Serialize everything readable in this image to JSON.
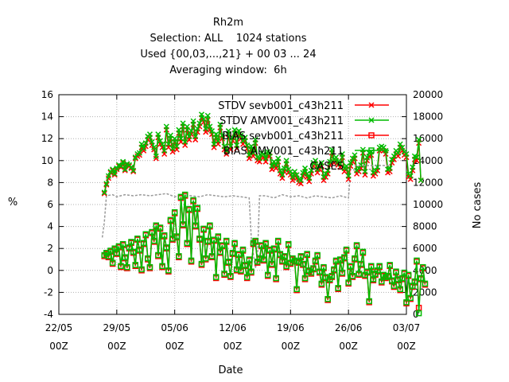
{
  "chart_data": {
    "type": "line",
    "title_lines": [
      "Rh2m",
      "Selection: ALL    1024 stations",
      "Used {00,03,...,21} + 00 03 ... 24",
      "Averaging window:  6h"
    ],
    "xlabel": "Date",
    "ylabel": "%",
    "y2label": "No cases",
    "xlim": [
      "2014-05-22T00:00",
      "2014-07-03T00:00"
    ],
    "ylim": [
      -4,
      16
    ],
    "y2lim": [
      0,
      20000
    ],
    "xticks": [
      {
        "date": "2014-05-22T00:00",
        "label": "22/05",
        "sub": "00Z"
      },
      {
        "date": "2014-05-29T00:00",
        "label": "29/05",
        "sub": "00Z"
      },
      {
        "date": "2014-06-05T00:00",
        "label": "05/06",
        "sub": "00Z"
      },
      {
        "date": "2014-06-12T00:00",
        "label": "12/06",
        "sub": "00Z"
      },
      {
        "date": "2014-06-19T00:00",
        "label": "19/06",
        "sub": "00Z"
      },
      {
        "date": "2014-06-26T00:00",
        "label": "26/06",
        "sub": "00Z"
      },
      {
        "date": "2014-07-03T00:00",
        "label": "03/07",
        "sub": "00Z"
      }
    ],
    "yticks": [
      "-4",
      "-2",
      "0",
      "2",
      "4",
      "6",
      "8",
      "10",
      "12",
      "14",
      "16"
    ],
    "y2ticks": [
      "0",
      "2000",
      "4000",
      "6000",
      "8000",
      "10000",
      "12000",
      "14000",
      "16000",
      "18000",
      "20000"
    ],
    "grid": true,
    "legend_position": "top-right",
    "x_step_hours": 6,
    "x_start": "2014-05-27T12:00",
    "series": [
      {
        "name": "STDV sevb001_c43h211",
        "color": "#ff0000",
        "marker": "x",
        "values": [
          7.0,
          7.8,
          8.4,
          8.9,
          9.1,
          8.7,
          9.2,
          9.5,
          9.4,
          9.8,
          9.1,
          9.6,
          9.5,
          9.3,
          9.0,
          10.2,
          10.4,
          10.5,
          11.2,
          10.9,
          11.3,
          11.9,
          12.1,
          11.4,
          11.0,
          10.2,
          12.1,
          11.5,
          11.2,
          10.6,
          12.8,
          11.2,
          12.0,
          10.8,
          11.7,
          11.0,
          12.5,
          11.7,
          13.1,
          11.4,
          12.8,
          11.9,
          12.4,
          13.3,
          11.9,
          12.6,
          13.1,
          13.9,
          13.5,
          12.6,
          13.7,
          12.8,
          12.4,
          11.2,
          12.1,
          11.5,
          13.0,
          12.0,
          11.0,
          10.6,
          12.4,
          11.0,
          11.8,
          12.5,
          11.1,
          12.4,
          12.0,
          11.5,
          11.8,
          11.1,
          10.2,
          11.0,
          10.4,
          11.6,
          10.0,
          9.9,
          10.4,
          10.3,
          9.9,
          10.5,
          10.4,
          9.2,
          9.6,
          9.3,
          9.9,
          8.8,
          8.4,
          9.0,
          9.7,
          8.9,
          8.7,
          8.2,
          8.7,
          8.4,
          8.0,
          7.9,
          8.6,
          9.0,
          8.5,
          8.1,
          8.8,
          9.5,
          9.7,
          8.9,
          9.2,
          9.5,
          8.2,
          8.5,
          8.8,
          9.6,
          10.7,
          9.8,
          10.0,
          9.6,
          9.4,
          10.3,
          9.0,
          9.2,
          8.3,
          9.5,
          9.9,
          10.2,
          8.8,
          9.0,
          9.3,
          10.7,
          8.7,
          10.0,
          10.4,
          10.5,
          8.6,
          8.8,
          9.1,
          10.9,
          11.0,
          10.9,
          10.6,
          8.9,
          9.0,
          9.8,
          10.1,
          10.6,
          10.4,
          11.2,
          10.9,
          10.5,
          10.3,
          8.5,
          8.3,
          9.1,
          10.1,
          10.0,
          11.6,
          8.2
        ]
      },
      {
        "name": "STDV AMV001_c43h211",
        "color": "#00bb00",
        "marker": "x",
        "values": [
          7.1,
          7.9,
          8.6,
          9.0,
          9.2,
          8.8,
          9.3,
          9.6,
          9.5,
          9.9,
          9.2,
          9.7,
          9.6,
          9.4,
          9.1,
          10.3,
          10.6,
          10.7,
          11.5,
          11.1,
          11.6,
          12.2,
          12.4,
          11.7,
          11.2,
          10.4,
          12.4,
          11.8,
          11.5,
          10.9,
          13.1,
          11.5,
          12.3,
          11.1,
          12.0,
          11.3,
          12.8,
          12.0,
          13.4,
          11.7,
          13.1,
          12.2,
          12.7,
          13.6,
          12.2,
          12.9,
          13.4,
          14.2,
          13.8,
          12.9,
          14.1,
          13.1,
          12.7,
          11.5,
          12.4,
          11.8,
          13.3,
          12.3,
          11.3,
          10.9,
          12.7,
          11.3,
          12.1,
          12.8,
          11.4,
          12.7,
          12.3,
          11.8,
          12.1,
          11.4,
          10.5,
          11.3,
          10.7,
          11.9,
          10.3,
          10.2,
          10.7,
          10.6,
          10.2,
          10.8,
          10.7,
          9.5,
          9.9,
          9.6,
          10.2,
          9.1,
          8.7,
          9.3,
          10.0,
          9.2,
          9.0,
          8.5,
          9.0,
          8.7,
          8.3,
          8.2,
          8.9,
          9.3,
          8.8,
          8.4,
          9.1,
          9.8,
          10.0,
          9.2,
          9.5,
          9.8,
          8.5,
          8.8,
          9.1,
          9.9,
          11.0,
          10.1,
          10.3,
          9.9,
          9.7,
          10.6,
          9.3,
          9.5,
          8.6,
          9.8,
          10.2,
          10.5,
          9.1,
          9.3,
          9.6,
          11.0,
          9.0,
          10.3,
          10.7,
          10.8,
          8.9,
          9.1,
          9.4,
          11.2,
          11.3,
          11.2,
          10.9,
          9.2,
          9.3,
          10.1,
          10.4,
          10.9,
          10.7,
          11.5,
          11.2,
          10.8,
          10.6,
          8.8,
          8.6,
          9.4,
          10.4,
          10.3,
          11.9,
          8.2
        ]
      },
      {
        "name": "BIAS sevb001_c43h211",
        "color": "#ff0000",
        "marker": "square",
        "values": [
          1.3,
          1.5,
          1.2,
          1.7,
          0.6,
          1.9,
          1.5,
          2.1,
          0.3,
          2.3,
          1.1,
          0.2,
          2.0,
          2.5,
          1.6,
          0.4,
          2.8,
          1.8,
          0.0,
          2.4,
          3.2,
          1.0,
          0.2,
          3.4,
          2.6,
          4.0,
          1.3,
          3.8,
          0.3,
          3.1,
          2.0,
          -0.1,
          4.5,
          2.8,
          5.2,
          3.0,
          1.2,
          6.6,
          4.1,
          6.8,
          2.4,
          5.5,
          0.8,
          6.3,
          4.0,
          5.6,
          2.8,
          0.5,
          3.7,
          1.0,
          2.6,
          4.0,
          1.2,
          2.7,
          -0.7,
          3.0,
          1.6,
          2.2,
          -0.4,
          2.6,
          0.7,
          -0.6,
          1.5,
          2.4,
          0.0,
          1.4,
          -0.1,
          1.8,
          0.4,
          -0.7,
          0.9,
          -0.2,
          2.4,
          2.6,
          0.7,
          1.0,
          2.2,
          0.9,
          2.4,
          -0.5,
          1.8,
          0.5,
          1.9,
          -0.8,
          2.6,
          1.4,
          0.8,
          1.2,
          0.3,
          2.3,
          0.6,
          1.0,
          0.8,
          -1.8,
          0.7,
          1.2,
          0.5,
          -0.8,
          1.4,
          -0.1,
          -0.3,
          0.1,
          0.8,
          1.3,
          -0.2,
          -1.3,
          0.2,
          -0.7,
          -2.7,
          -0.9,
          -0.6,
          0.0,
          0.8,
          -1.7,
          0.9,
          -0.3,
          1.1,
          1.8,
          -1.2,
          0.3,
          -0.6,
          1.0,
          2.2,
          -0.4,
          0.5,
          1.6,
          -0.5,
          -0.2,
          -2.9,
          0.3,
          -0.9,
          -0.4,
          -0.1,
          0.3,
          -1.1,
          -0.5,
          -0.7,
          -0.6,
          0.4,
          -1.0,
          -1.5,
          -0.2,
          -0.9,
          -1.8,
          -0.8,
          -0.3,
          -3.0,
          -0.5,
          -2.6,
          -1.5,
          -1.1,
          0.8,
          -3.4,
          -0.8,
          0.2,
          -1.3
        ]
      },
      {
        "name": "BIAS AMV001_c43h211",
        "color": "#00bb00",
        "marker": "square",
        "values": [
          1.4,
          1.6,
          1.3,
          1.8,
          0.7,
          2.0,
          1.6,
          2.2,
          0.4,
          2.4,
          1.2,
          0.3,
          2.1,
          2.6,
          1.7,
          0.5,
          2.9,
          1.9,
          0.1,
          2.5,
          3.3,
          1.1,
          0.3,
          3.5,
          2.7,
          4.1,
          1.4,
          3.9,
          0.4,
          3.2,
          2.1,
          0.0,
          4.6,
          2.9,
          5.3,
          3.1,
          1.3,
          6.7,
          4.2,
          6.9,
          2.5,
          5.6,
          0.9,
          6.4,
          4.1,
          5.7,
          2.9,
          0.6,
          3.8,
          1.1,
          2.7,
          4.1,
          1.3,
          2.8,
          -0.6,
          3.1,
          1.7,
          2.3,
          -0.3,
          2.7,
          0.8,
          -0.5,
          1.6,
          2.5,
          0.1,
          1.5,
          0.0,
          1.9,
          0.5,
          -0.6,
          1.0,
          -0.1,
          2.5,
          2.7,
          0.8,
          1.1,
          2.3,
          1.0,
          2.5,
          -0.4,
          1.9,
          0.6,
          2.0,
          -0.7,
          2.7,
          1.5,
          0.9,
          1.3,
          0.4,
          2.4,
          0.7,
          1.1,
          0.9,
          -1.7,
          0.8,
          1.3,
          0.6,
          -0.7,
          1.5,
          0.0,
          -0.2,
          0.2,
          0.9,
          1.4,
          -0.1,
          -1.2,
          0.3,
          -0.6,
          -2.6,
          -0.8,
          -0.5,
          0.1,
          0.9,
          -1.6,
          1.0,
          -0.2,
          1.2,
          1.9,
          -1.1,
          0.4,
          -0.5,
          1.1,
          2.3,
          -0.3,
          0.6,
          1.7,
          -0.4,
          -0.1,
          -2.8,
          0.4,
          -0.8,
          -0.3,
          0.0,
          0.4,
          -1.0,
          -0.4,
          -0.6,
          -0.5,
          0.5,
          -0.9,
          -1.4,
          -0.1,
          -0.8,
          -1.7,
          -0.7,
          -0.2,
          -2.9,
          -0.4,
          -2.5,
          -1.4,
          -1.0,
          0.9,
          -3.9,
          -0.7,
          0.3,
          -1.2
        ]
      }
    ],
    "cases": {
      "name": "CASES",
      "color": "#999999",
      "axis": "y2",
      "points": [
        [
          "2014-05-27T06:00",
          7000
        ],
        [
          "2014-05-27T12:00",
          8400
        ],
        [
          "2014-05-27T18:00",
          10800
        ],
        [
          "2014-05-28T12:00",
          10900
        ],
        [
          "2014-05-29T00:00",
          10700
        ],
        [
          "2014-05-30T00:00",
          10900
        ],
        [
          "2014-05-31T00:00",
          10800
        ],
        [
          "2014-06-01T00:00",
          10900
        ],
        [
          "2014-06-02T00:00",
          10800
        ],
        [
          "2014-06-03T00:00",
          10900
        ],
        [
          "2014-06-04T00:00",
          11000
        ],
        [
          "2014-06-05T00:00",
          10700
        ],
        [
          "2014-06-06T00:00",
          10900
        ],
        [
          "2014-06-07T00:00",
          10800
        ],
        [
          "2014-06-08T00:00",
          10700
        ],
        [
          "2014-06-09T00:00",
          10900
        ],
        [
          "2014-06-10T00:00",
          10800
        ],
        [
          "2014-06-11T00:00",
          10700
        ],
        [
          "2014-06-12T00:00",
          10800
        ],
        [
          "2014-06-13T00:00",
          10700
        ],
        [
          "2014-06-14T00:00",
          10600
        ],
        [
          "2014-06-14T06:00",
          7000
        ],
        [
          "2014-06-14T12:00",
          5500
        ],
        [
          "2014-06-14T18:00",
          4200
        ],
        [
          "2014-06-15T00:00",
          5000
        ],
        [
          "2014-06-15T06:00",
          10800
        ],
        [
          "2014-06-16T00:00",
          10800
        ],
        [
          "2014-06-17T00:00",
          10600
        ],
        [
          "2014-06-18T00:00",
          10900
        ],
        [
          "2014-06-19T00:00",
          10700
        ],
        [
          "2014-06-20T00:00",
          10800
        ],
        [
          "2014-06-21T00:00",
          10600
        ],
        [
          "2014-06-22T00:00",
          10800
        ],
        [
          "2014-06-23T00:00",
          10700
        ],
        [
          "2014-06-24T00:00",
          10600
        ],
        [
          "2014-06-25T00:00",
          10800
        ],
        [
          "2014-06-26T00:00",
          10600
        ],
        [
          "2014-06-26T06:00",
          13200
        ],
        [
          "2014-06-27T00:00",
          13100
        ],
        [
          "2014-06-28T00:00",
          13200
        ],
        [
          "2014-06-29T00:00",
          13200
        ]
      ]
    },
    "legend": [
      {
        "label": "STDV sevb001_c43h211",
        "color": "#ff0000",
        "marker": "x"
      },
      {
        "label": "STDV AMV001_c43h211",
        "color": "#00bb00",
        "marker": "x"
      },
      {
        "label": "BIAS sevb001_c43h211",
        "color": "#ff0000",
        "marker": "square"
      },
      {
        "label": "BIAS AMV001_c43h211",
        "color": "#00bb00",
        "marker": "square"
      },
      {
        "label": "CASES",
        "color": "#999999",
        "marker": "dash"
      }
    ]
  }
}
